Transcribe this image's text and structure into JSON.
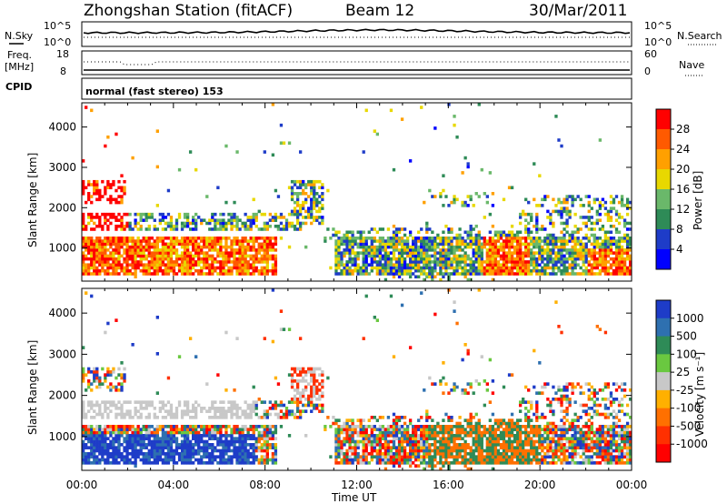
{
  "header": {
    "title": "Zhongshan Station (fitACF)",
    "beam": "Beam 12",
    "date": "30/Mar/2011"
  },
  "noise_panel": {
    "left_label": "N.Sky",
    "left_ticks": [
      "10^5",
      "10^0"
    ],
    "right_label": "N.Search",
    "right_ticks": [
      "10^5",
      "10^0"
    ]
  },
  "freq_panel": {
    "left_label_1": "Freq.",
    "left_label_2": "[MHz]",
    "left_ticks": [
      "18",
      "8"
    ],
    "right_label": "Nave",
    "right_ticks": [
      "60",
      "0"
    ],
    "cpid_label": "CPID",
    "cpid_text": "normal (fast stereo) 153"
  },
  "chart_data": [
    {
      "type": "heatmap",
      "panel": "power",
      "ylabel": "Slant Range [km]",
      "ylim": [
        180,
        4600
      ],
      "y_ticks": [
        "4000",
        "3000",
        "2000",
        "1000"
      ],
      "x_ticks": [
        "00:00",
        "04:00",
        "08:00",
        "12:00",
        "16:00",
        "20:00",
        "00:00"
      ],
      "colorbar_label": "Power [dB]",
      "colorbar_ticks": [
        "28",
        "24",
        "20",
        "16",
        "12",
        "8",
        "4"
      ],
      "colorbar_colors": [
        "#ff0000",
        "#ff5a00",
        "#ffa000",
        "#e8d800",
        "#6ab86a",
        "#2e8b57",
        "#1e3cc8",
        "#0000ff"
      ]
    },
    {
      "type": "heatmap",
      "panel": "velocity",
      "ylabel": "Slant Range [km]",
      "xlabel": "Time UT",
      "ylim": [
        180,
        4600
      ],
      "y_ticks": [
        "4000",
        "3000",
        "2000",
        "1000"
      ],
      "x_ticks": [
        "00:00",
        "04:00",
        "08:00",
        "12:00",
        "16:00",
        "20:00",
        "00:00"
      ],
      "colorbar_label": "Velocity [m s⁻¹]",
      "colorbar_ticks": [
        "1000",
        "500",
        "100",
        "25",
        "-25",
        "-100",
        "-500",
        "-1000"
      ],
      "colorbar_colors": [
        "#1e3cc8",
        "#2e70b0",
        "#2e8b57",
        "#6ac840",
        "#c8c8c8",
        "#ffb000",
        "#ff7000",
        "#ff3000",
        "#ff0000"
      ]
    }
  ]
}
